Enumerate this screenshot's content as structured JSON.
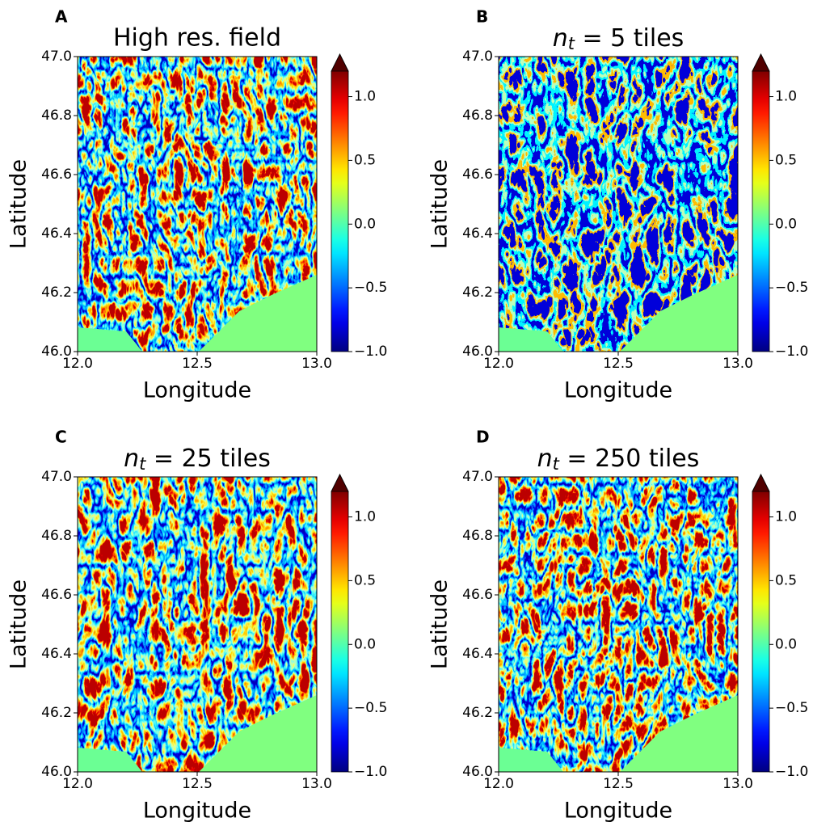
{
  "chart_data": [
    {
      "type": "heatmap",
      "panel_label": "A",
      "title": "High res. field",
      "xlabel": "Longitude",
      "ylabel": "Latitude",
      "xlim": [
        12,
        13
      ],
      "xticks": [
        {
          "value": 12,
          "label": "12.0"
        },
        12.5,
        {
          "value": 13,
          "label": "13.0"
        }
      ],
      "ylim": [
        46,
        47
      ],
      "yticks": [
        {
          "value": 46,
          "label": "46.0"
        },
        46.2,
        46.4,
        46.6,
        46.8,
        {
          "value": 47,
          "label": "47.0"
        }
      ],
      "colormap": "jet",
      "clim": [
        -1,
        1.2
      ],
      "colorbar_extend": "max",
      "cticks": [
        {
          "value": -1,
          "label": "−1.0"
        },
        {
          "value": -0.5,
          "label": "−0.5"
        },
        {
          "value": 0,
          "label": "0.0"
        },
        0.5,
        {
          "value": 1,
          "label": "1.0"
        }
      ]
    },
    {
      "type": "heatmap",
      "panel_label": "B",
      "title_symbol": "n",
      "title_subscript": "t",
      "title_text": " = 5 tiles",
      "xlabel": "Longitude",
      "ylabel": "Latitude",
      "xlim": [
        12,
        13
      ],
      "xticks": [
        {
          "value": 12,
          "label": "12.0"
        },
        12.5,
        {
          "value": 13,
          "label": "13.0"
        }
      ],
      "ylim": [
        46,
        47
      ],
      "yticks": [
        {
          "value": 46,
          "label": "46.0"
        },
        46.2,
        46.4,
        46.6,
        46.8,
        {
          "value": 47,
          "label": "47.0"
        }
      ],
      "colormap": "jet",
      "clim": [
        -1,
        1.2
      ],
      "colorbar_extend": "max",
      "cticks": [
        {
          "value": -1,
          "label": "−1.0"
        },
        {
          "value": -0.5,
          "label": "−0.5"
        },
        {
          "value": 0,
          "label": "0.0"
        },
        0.5,
        {
          "value": 1,
          "label": "1.0"
        }
      ]
    },
    {
      "type": "heatmap",
      "panel_label": "C",
      "title_symbol": "n",
      "title_subscript": "t",
      "title_text": " = 25 tiles",
      "xlabel": "Longitude",
      "ylabel": "Latitude",
      "xlim": [
        12,
        13
      ],
      "xticks": [
        {
          "value": 12,
          "label": "12.0"
        },
        12.5,
        {
          "value": 13,
          "label": "13.0"
        }
      ],
      "ylim": [
        46,
        47
      ],
      "yticks": [
        {
          "value": 46,
          "label": "46.0"
        },
        46.2,
        46.4,
        46.6,
        46.8,
        {
          "value": 47,
          "label": "47.0"
        }
      ],
      "colormap": "jet",
      "clim": [
        -1,
        1.2
      ],
      "colorbar_extend": "max",
      "cticks": [
        {
          "value": -1,
          "label": "−1.0"
        },
        {
          "value": -0.5,
          "label": "−0.5"
        },
        {
          "value": 0,
          "label": "0.0"
        },
        0.5,
        {
          "value": 1,
          "label": "1.0"
        }
      ]
    },
    {
      "type": "heatmap",
      "panel_label": "D",
      "title_symbol": "n",
      "title_subscript": "t",
      "title_text": " = 250 tiles",
      "xlabel": "Longitude",
      "ylabel": "Latitude",
      "xlim": [
        12,
        13
      ],
      "xticks": [
        {
          "value": 12,
          "label": "12.0"
        },
        12.5,
        {
          "value": 13,
          "label": "13.0"
        }
      ],
      "ylim": [
        46,
        47
      ],
      "yticks": [
        {
          "value": 46,
          "label": "46.0"
        },
        46.2,
        46.4,
        46.6,
        46.8,
        {
          "value": 47,
          "label": "47.0"
        }
      ],
      "colormap": "jet",
      "clim": [
        -1,
        1.2
      ],
      "colorbar_extend": "max",
      "cticks": [
        {
          "value": -1,
          "label": "−1.0"
        },
        {
          "value": -0.5,
          "label": "−0.5"
        },
        {
          "value": 0,
          "label": "0.0"
        },
        0.5,
        {
          "value": 1,
          "label": "1.0"
        }
      ]
    }
  ]
}
